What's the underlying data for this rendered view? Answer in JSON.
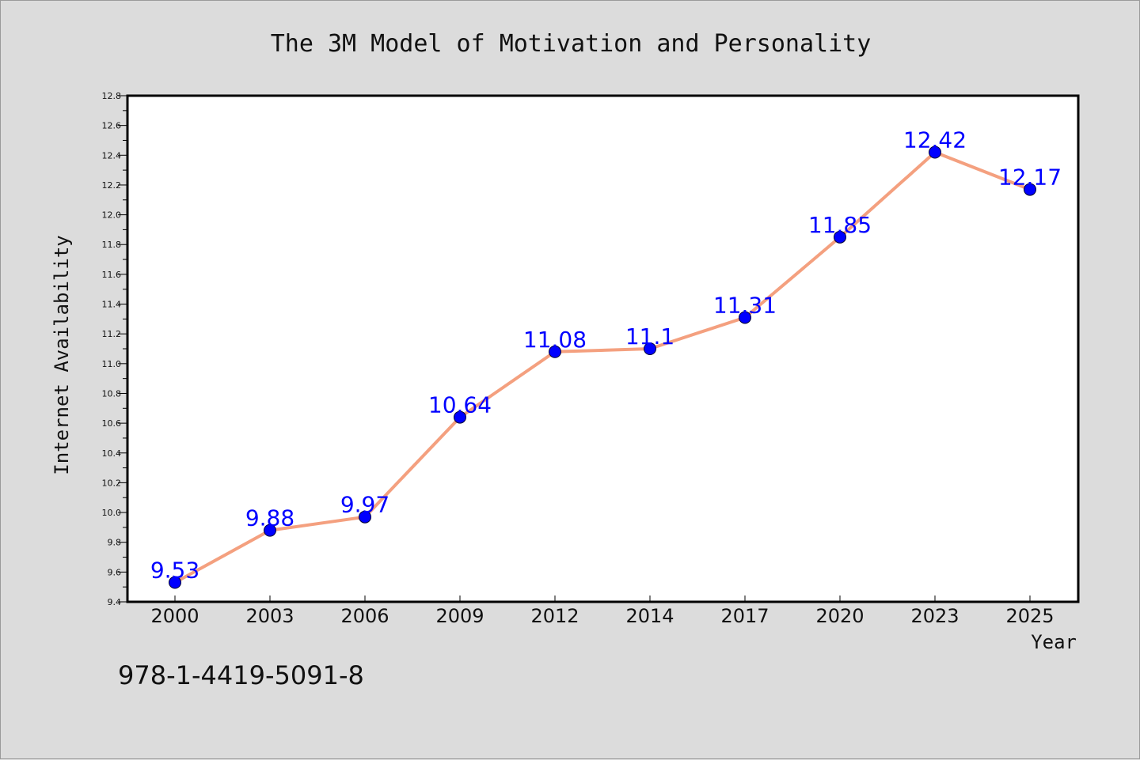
{
  "chart_data": {
    "type": "line",
    "title": "The 3M Model of Motivation and Personality",
    "xlabel": "Year",
    "ylabel": "Internet Availability",
    "categories": [
      "2000",
      "2003",
      "2006",
      "2009",
      "2012",
      "2014",
      "2017",
      "2020",
      "2023",
      "2025"
    ],
    "series": [
      {
        "values": [
          9.53,
          9.88,
          9.97,
          10.64,
          11.08,
          11.1,
          11.31,
          11.85,
          12.42,
          12.17
        ],
        "data_labels": [
          "9.53",
          "9.88",
          "9.97",
          "10.64",
          "11.08",
          "11.1",
          "11.31",
          "11.85",
          "12.42",
          "12.17"
        ]
      }
    ],
    "ylim": [
      9.4,
      12.8
    ],
    "yticks": [
      "9.4",
      "9.6",
      "9.8",
      "10.0",
      "10.2",
      "10.4",
      "10.6",
      "10.8",
      "11.0",
      "11.2",
      "11.4",
      "11.6",
      "11.8",
      "12.0",
      "12.2",
      "12.4",
      "12.6",
      "12.8"
    ],
    "grid": false,
    "legend": "none",
    "colors": {
      "line": "#f4a07f",
      "marker": "#0000ff",
      "data_label": "#0000ff",
      "plot_background": "#ffffff",
      "figure_background": "#dcdcdc"
    }
  },
  "annotation": {
    "isbn": "978-1-4419-5091-8"
  }
}
